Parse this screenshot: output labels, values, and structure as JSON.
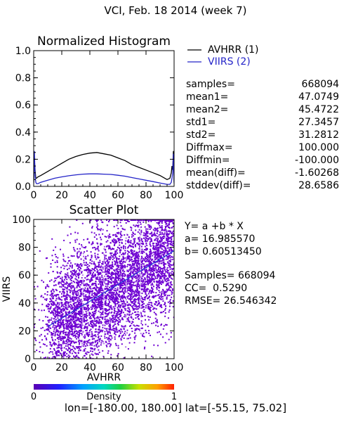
{
  "page": {
    "title": "VCI,  Feb. 18 2014 (week 7)",
    "footer": "lon=[-180.00, 180.00] lat=[-55.15, 75.02]"
  },
  "colors": {
    "avhrr": "#000000",
    "viirs": "#2424c8",
    "scatter_points": "#6e00d2",
    "fit_line": "#1f3fd6"
  },
  "stats": [
    {
      "label": "samples=",
      "value": "668094"
    },
    {
      "label": "mean1=",
      "value": "47.0749"
    },
    {
      "label": "mean2=",
      "value": "45.4722"
    },
    {
      "label": "std1=",
      "value": "27.3457"
    },
    {
      "label": "std2=",
      "value": "31.2812"
    },
    {
      "label": "Diffmax=",
      "value": "100.000"
    },
    {
      "label": "Diffmin=",
      "value": "-100.000"
    },
    {
      "label": "mean(diff)=",
      "value": "-1.60268"
    },
    {
      "label": "stddev(diff)=",
      "value": "28.6586"
    }
  ],
  "fit": {
    "equation": "Y= a +b * X",
    "a": "a= 16.985570",
    "b": "b= 0.60513450",
    "samples": "Samples= 668094",
    "cc": "CC=  0.5290",
    "rmse": "RMSE= 26.546342"
  },
  "chart_data": [
    {
      "type": "line",
      "title": "Normalized Histogram",
      "xlim": [
        0,
        100
      ],
      "ylim": [
        0,
        1
      ],
      "x_ticks": [
        "0",
        "20",
        "40",
        "60",
        "80",
        "100"
      ],
      "y_ticks": [
        "0.0",
        "0.2",
        "0.4",
        "0.6",
        "0.8",
        "1.0"
      ],
      "legend_position": "right",
      "series": [
        {
          "name": "AVHRR (1)",
          "color": "#000000",
          "x": [
            0,
            0.5,
            1,
            1.5,
            2,
            3,
            5,
            10,
            15,
            20,
            25,
            30,
            35,
            40,
            45,
            50,
            55,
            60,
            65,
            70,
            75,
            80,
            85,
            90,
            95,
            97,
            98,
            98.5,
            99,
            99.5,
            100
          ],
          "y": [
            0.03,
            0.2,
            0.12,
            0.06,
            0.06,
            0.07,
            0.08,
            0.11,
            0.14,
            0.17,
            0.2,
            0.22,
            0.235,
            0.245,
            0.25,
            0.24,
            0.23,
            0.21,
            0.19,
            0.16,
            0.14,
            0.12,
            0.1,
            0.08,
            0.05,
            0.06,
            0.1,
            0.15,
            0.12,
            0.26,
            0.03
          ]
        },
        {
          "name": "VIIRS (2)",
          "color": "#2424c8",
          "x": [
            0,
            0.5,
            1,
            1.5,
            2,
            3,
            5,
            10,
            15,
            20,
            25,
            30,
            35,
            40,
            45,
            50,
            55,
            60,
            65,
            70,
            75,
            80,
            85,
            90,
            95,
            97,
            98,
            98.5,
            99,
            99.5,
            100
          ],
          "y": [
            0.02,
            0.26,
            0.08,
            0.03,
            0.02,
            0.02,
            0.03,
            0.045,
            0.06,
            0.07,
            0.078,
            0.085,
            0.09,
            0.092,
            0.092,
            0.09,
            0.088,
            0.082,
            0.075,
            0.065,
            0.055,
            0.045,
            0.035,
            0.025,
            0.015,
            0.015,
            0.03,
            0.06,
            0.1,
            0.24,
            0.02
          ]
        }
      ]
    },
    {
      "type": "scatter",
      "title": "Scatter Plot",
      "xlabel": "AVHRR",
      "ylabel": "VIIRS",
      "xlim": [
        0,
        100
      ],
      "ylim": [
        0,
        100
      ],
      "x_ticks": [
        "0",
        "20",
        "40",
        "60",
        "80",
        "100"
      ],
      "y_ticks": [
        "0",
        "20",
        "40",
        "60",
        "80",
        "100"
      ],
      "fit_line": {
        "intercept": 16.98557,
        "slope": 0.6051345,
        "x_range": [
          10,
          100
        ]
      },
      "colorbar": {
        "label": "Density",
        "min_label": "0",
        "max_label": "1"
      }
    }
  ]
}
